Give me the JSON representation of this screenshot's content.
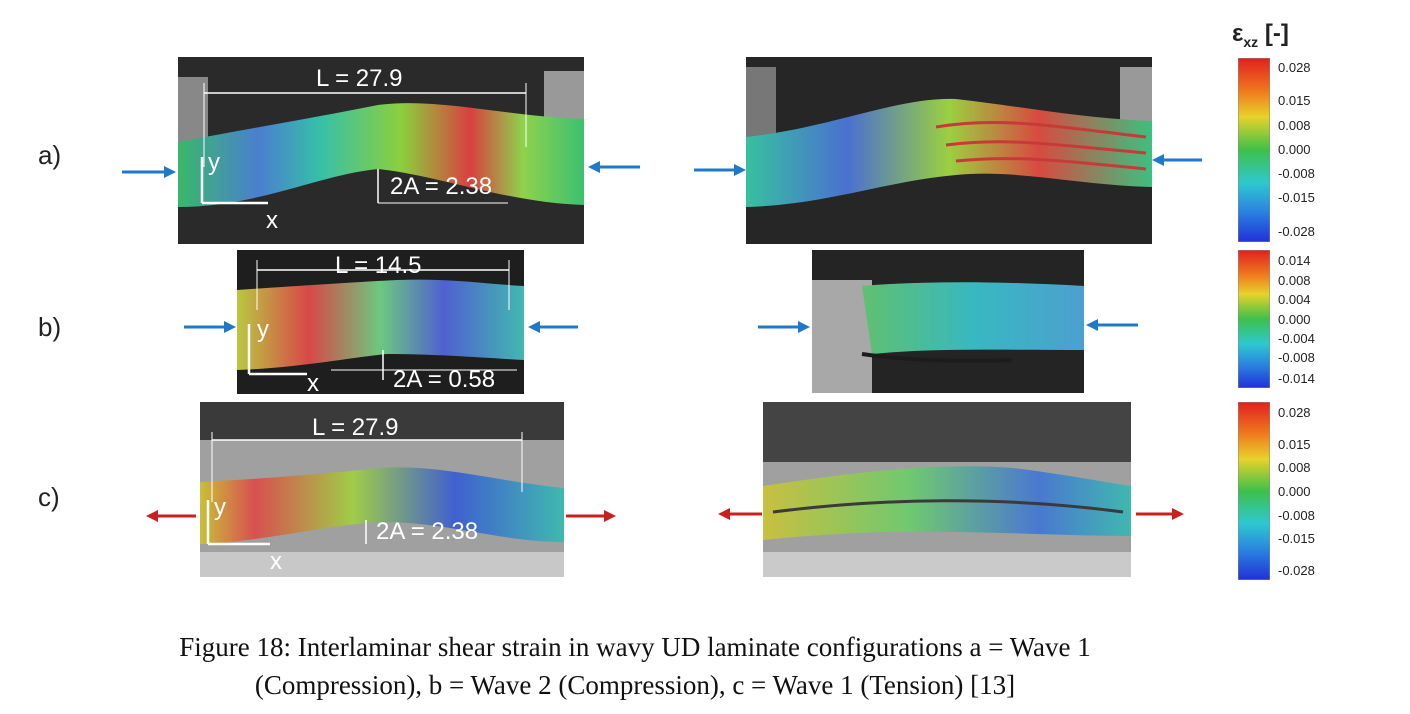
{
  "figure": {
    "colorbar_title_main": "ε",
    "colorbar_title_sub": "xz",
    "colorbar_title_unit": "[-]",
    "rows": [
      {
        "label": "a)",
        "length_label": "L = 27.9",
        "amplitude_label": "2A = 2.38",
        "axis_y": "y",
        "axis_x": "x",
        "load": "compression",
        "arrow_color": "#1f78c8",
        "ticks": [
          "0.028",
          "0.015",
          "0.008",
          "0.000",
          "-0.008",
          "-0.015",
          "-0.028"
        ]
      },
      {
        "label": "b)",
        "length_label": "L = 14.5",
        "amplitude_label": "2A = 0.58",
        "axis_y": "y",
        "axis_x": "x",
        "load": "compression",
        "arrow_color": "#1f78c8",
        "ticks": [
          "0.014",
          "0.008",
          "0.004",
          "0.000",
          "-0.004",
          "-0.008",
          "-0.014"
        ]
      },
      {
        "label": "c)",
        "length_label": "L = 27.9",
        "amplitude_label": "2A = 2.38",
        "axis_y": "y",
        "axis_x": "x",
        "load": "tension",
        "arrow_color": "#c8201e",
        "ticks": [
          "0.028",
          "0.015",
          "0.008",
          "0.000",
          "-0.008",
          "-0.015",
          "-0.028"
        ]
      }
    ],
    "caption_line1": "Figure 18: Interlaminar shear strain in wavy UD laminate configurations a = Wave 1",
    "caption_line2": "(Compression), b = Wave 2 (Compression), c = Wave 1 (Tension) [13]"
  }
}
